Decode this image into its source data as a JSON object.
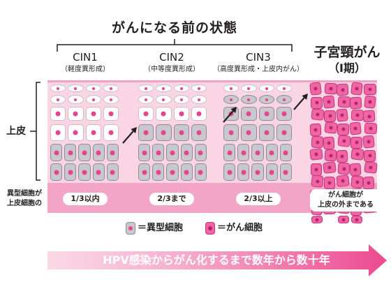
{
  "title": "がんになる前の状態",
  "epithelium_label": "上皮",
  "band_label": {
    "line1": "異型細胞が",
    "line2": "上皮細胞の"
  },
  "stages": [
    {
      "name": "CIN1",
      "subtitle": "（軽度異形成）",
      "extent": "1/3以内"
    },
    {
      "name": "CIN2",
      "subtitle": "（中等度異形成）",
      "extent": "2/3まで"
    },
    {
      "name": "CIN3",
      "subtitle": "（高度異形成・上皮内がん）",
      "extent": "2/3以上"
    }
  ],
  "cancer_stage": {
    "name": "子宮頸がん",
    "subtitle": "（Ⅰ期）",
    "extent_line1": "がん細胞が",
    "extent_line2": "上皮の外まである"
  },
  "legend": {
    "atypical_label": "＝異型細胞",
    "cancer_label": "＝がん細胞"
  },
  "timeline": "HPV感染からがん化するまで数年から数十年",
  "colors": {
    "normal": "#ffffff",
    "atypical": "#c8c8ce",
    "cancer": "#ee64a4",
    "nucleus": "#e4468d",
    "cancer_nucleus": "#b92469",
    "epithelium": "#fad6e5",
    "band": "#f3a5c7"
  }
}
